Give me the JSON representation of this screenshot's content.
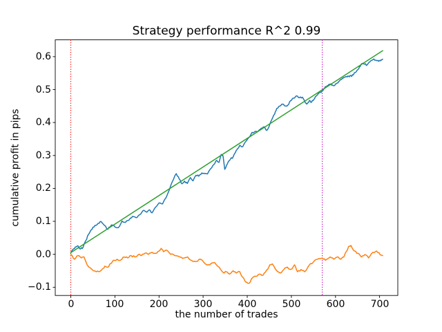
{
  "chart_data": {
    "type": "line",
    "title": "Strategy performance R^2 0.99",
    "xlabel": "the number of trades",
    "ylabel": "cumulative profit in pips",
    "xlim": [
      -35.3,
      741.3
    ],
    "ylim": [
      -0.125,
      0.651
    ],
    "grid": false,
    "legend": null,
    "xticks": [
      0,
      100,
      200,
      300,
      400,
      500,
      600,
      700
    ],
    "xticklabels": [
      "0",
      "100",
      "200",
      "300",
      "400",
      "500",
      "600",
      "700"
    ],
    "yticks": [
      0.6,
      0.5,
      0.4,
      0.3,
      0.2,
      0.1,
      0.0,
      -0.1
    ],
    "yticklabels": [
      "0.6",
      "0.5",
      "0.4",
      "0.3",
      "0.2",
      "0.1",
      "0.0",
      "−0.1"
    ],
    "vlines": [
      {
        "name": "red-dotted",
        "x": 0,
        "color": "#ff0000",
        "style": "dotted"
      },
      {
        "name": "magenta-dotted",
        "x": 570,
        "color": "#bf00bf",
        "style": "dotted"
      }
    ],
    "series": [
      {
        "name": "cumulative-profit-blue",
        "color": "#1f77b4",
        "style": "solid",
        "points": [
          [
            0,
            0.005
          ],
          [
            5,
            0.015
          ],
          [
            10,
            0.022
          ],
          [
            16,
            0.026
          ],
          [
            22,
            0.016
          ],
          [
            28,
            0.022
          ],
          [
            34,
            0.042
          ],
          [
            40,
            0.06
          ],
          [
            48,
            0.076
          ],
          [
            55,
            0.088
          ],
          [
            62,
            0.094
          ],
          [
            69,
            0.099
          ],
          [
            76,
            0.088
          ],
          [
            84,
            0.076
          ],
          [
            92,
            0.089
          ],
          [
            100,
            0.083
          ],
          [
            108,
            0.081
          ],
          [
            116,
            0.101
          ],
          [
            124,
            0.097
          ],
          [
            132,
            0.104
          ],
          [
            140,
            0.115
          ],
          [
            148,
            0.111
          ],
          [
            156,
            0.12
          ],
          [
            164,
            0.133
          ],
          [
            172,
            0.128
          ],
          [
            178,
            0.135
          ],
          [
            184,
            0.126
          ],
          [
            192,
            0.143
          ],
          [
            200,
            0.156
          ],
          [
            208,
            0.153
          ],
          [
            215,
            0.17
          ],
          [
            222,
            0.191
          ],
          [
            230,
            0.22
          ],
          [
            239,
            0.245
          ],
          [
            246,
            0.228
          ],
          [
            252,
            0.214
          ],
          [
            258,
            0.222
          ],
          [
            264,
            0.215
          ],
          [
            271,
            0.233
          ],
          [
            277,
            0.223
          ],
          [
            284,
            0.24
          ],
          [
            290,
            0.237
          ],
          [
            297,
            0.247
          ],
          [
            304,
            0.245
          ],
          [
            310,
            0.244
          ],
          [
            317,
            0.26
          ],
          [
            324,
            0.272
          ],
          [
            331,
            0.285
          ],
          [
            336,
            0.279
          ],
          [
            341,
            0.303
          ],
          [
            345,
            0.299
          ],
          [
            349,
            0.258
          ],
          [
            355,
            0.275
          ],
          [
            362,
            0.289
          ],
          [
            368,
            0.296
          ],
          [
            375,
            0.315
          ],
          [
            383,
            0.331
          ],
          [
            390,
            0.327
          ],
          [
            397,
            0.343
          ],
          [
            404,
            0.355
          ],
          [
            411,
            0.37
          ],
          [
            418,
            0.373
          ],
          [
            425,
            0.374
          ],
          [
            432,
            0.383
          ],
          [
            438,
            0.387
          ],
          [
            444,
            0.376
          ],
          [
            450,
            0.39
          ],
          [
            456,
            0.41
          ],
          [
            462,
            0.425
          ],
          [
            467,
            0.443
          ],
          [
            474,
            0.45
          ],
          [
            480,
            0.456
          ],
          [
            486,
            0.45
          ],
          [
            492,
            0.453
          ],
          [
            498,
            0.466
          ],
          [
            505,
            0.474
          ],
          [
            512,
            0.481
          ],
          [
            518,
            0.475
          ],
          [
            525,
            0.477
          ],
          [
            531,
            0.462
          ],
          [
            535,
            0.456
          ],
          [
            541,
            0.467
          ],
          [
            546,
            0.462
          ],
          [
            551,
            0.47
          ],
          [
            556,
            0.48
          ],
          [
            561,
            0.488
          ],
          [
            566,
            0.492
          ],
          [
            570,
            0.495
          ],
          [
            574,
            0.503
          ],
          [
            578,
            0.509
          ],
          [
            583,
            0.512
          ],
          [
            588,
            0.516
          ],
          [
            593,
            0.514
          ],
          [
            598,
            0.512
          ],
          [
            604,
            0.52
          ],
          [
            609,
            0.526
          ],
          [
            614,
            0.531
          ],
          [
            619,
            0.537
          ],
          [
            625,
            0.539
          ],
          [
            630,
            0.54
          ],
          [
            635,
            0.542
          ],
          [
            640,
            0.544
          ],
          [
            645,
            0.552
          ],
          [
            651,
            0.561
          ],
          [
            656,
            0.57
          ],
          [
            661,
            0.579
          ],
          [
            666,
            0.577
          ],
          [
            672,
            0.575
          ],
          [
            678,
            0.584
          ],
          [
            683,
            0.589
          ],
          [
            687,
            0.593
          ],
          [
            692,
            0.589
          ],
          [
            698,
            0.586
          ],
          [
            703,
            0.59
          ],
          [
            707,
            0.592
          ]
        ]
      },
      {
        "name": "residual-orange",
        "color": "#ff7f0e",
        "style": "solid",
        "points": [
          [
            0,
            0.0
          ],
          [
            8,
            -0.015
          ],
          [
            16,
            -0.004
          ],
          [
            24,
            -0.011
          ],
          [
            30,
            -0.008
          ],
          [
            37,
            -0.032
          ],
          [
            48,
            -0.046
          ],
          [
            58,
            -0.053
          ],
          [
            66,
            -0.052
          ],
          [
            72,
            -0.044
          ],
          [
            77,
            -0.036
          ],
          [
            84,
            -0.039
          ],
          [
            90,
            -0.028
          ],
          [
            97,
            -0.018
          ],
          [
            105,
            -0.015
          ],
          [
            113,
            -0.018
          ],
          [
            121,
            -0.008
          ],
          [
            129,
            -0.011
          ],
          [
            137,
            -0.004
          ],
          [
            145,
            -0.008
          ],
          [
            153,
            -0.001
          ],
          [
            160,
            -0.004
          ],
          [
            168,
            0.003
          ],
          [
            176,
            0.0
          ],
          [
            184,
            0.006
          ],
          [
            192,
            0.003
          ],
          [
            200,
            0.01
          ],
          [
            205,
            0.018
          ],
          [
            210,
            0.008
          ],
          [
            216,
            0.013
          ],
          [
            226,
            0.0
          ],
          [
            236,
            -0.004
          ],
          [
            247,
            -0.008
          ],
          [
            257,
            -0.011
          ],
          [
            265,
            -0.008
          ],
          [
            273,
            -0.018
          ],
          [
            284,
            -0.022
          ],
          [
            294,
            -0.015
          ],
          [
            305,
            -0.029
          ],
          [
            315,
            -0.032
          ],
          [
            326,
            -0.025
          ],
          [
            336,
            -0.039
          ],
          [
            347,
            -0.057
          ],
          [
            352,
            -0.053
          ],
          [
            360,
            -0.06
          ],
          [
            368,
            -0.05
          ],
          [
            375,
            -0.057
          ],
          [
            383,
            -0.053
          ],
          [
            390,
            -0.07
          ],
          [
            396,
            -0.084
          ],
          [
            404,
            -0.088
          ],
          [
            412,
            -0.071
          ],
          [
            420,
            -0.067
          ],
          [
            428,
            -0.06
          ],
          [
            436,
            -0.063
          ],
          [
            444,
            -0.048
          ],
          [
            451,
            -0.032
          ],
          [
            457,
            -0.029
          ],
          [
            467,
            -0.05
          ],
          [
            475,
            -0.057
          ],
          [
            483,
            -0.046
          ],
          [
            491,
            -0.039
          ],
          [
            499,
            -0.046
          ],
          [
            507,
            -0.032
          ],
          [
            514,
            -0.053
          ],
          [
            522,
            -0.046
          ],
          [
            530,
            -0.053
          ],
          [
            541,
            -0.032
          ],
          [
            549,
            -0.025
          ],
          [
            559,
            -0.015
          ],
          [
            570,
            -0.011
          ],
          [
            577,
            -0.018
          ],
          [
            588,
            -0.008
          ],
          [
            596,
            -0.015
          ],
          [
            604,
            -0.008
          ],
          [
            612,
            -0.015
          ],
          [
            619,
            -0.008
          ],
          [
            630,
            0.024
          ],
          [
            635,
            0.027
          ],
          [
            643,
            0.01
          ],
          [
            651,
            0.003
          ],
          [
            659,
            -0.008
          ],
          [
            667,
            -0.001
          ],
          [
            675,
            -0.011
          ],
          [
            685,
            0.006
          ],
          [
            693,
            0.01
          ],
          [
            701,
            -0.001
          ],
          [
            707,
            -0.004
          ]
        ]
      },
      {
        "name": "linear-fit-green",
        "color": "#2ca02c",
        "style": "solid",
        "points": [
          [
            0,
            0.005
          ],
          [
            707,
            0.618
          ]
        ]
      }
    ]
  }
}
